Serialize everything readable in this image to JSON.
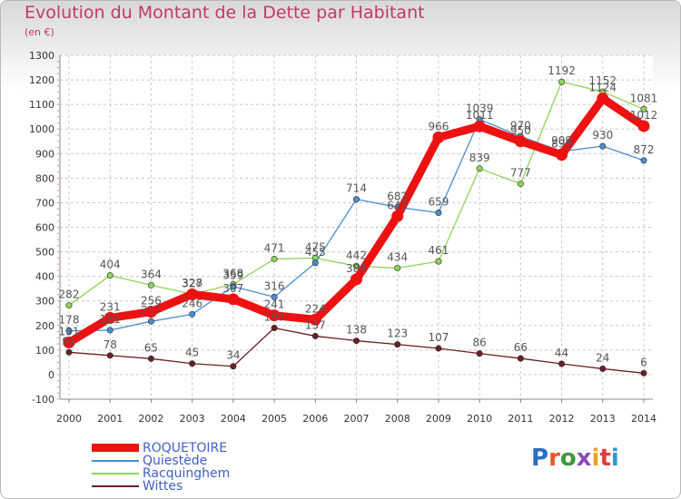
{
  "header": {
    "title": "Evolution du Montant de la Dette par Habitant",
    "subtitle": "(en €)"
  },
  "logo": {
    "text": "Proxiti",
    "letter_colors": [
      "#2a6ec4",
      "#e8562a",
      "#3a9a3a",
      "#8e4cb4",
      "#f0a020",
      "#e03a3a",
      "#2a9ad0"
    ]
  },
  "colors": {
    "title": "#c0396a",
    "grid": "#c8c8c8",
    "axis_tick_marks": "#d98aa0"
  },
  "chart_data": {
    "type": "line",
    "title": "Evolution du Montant de la Dette par Habitant",
    "subtitle": "(en €)",
    "x": [
      "2000",
      "2001",
      "2002",
      "2003",
      "2004",
      "2005",
      "2006",
      "2007",
      "2008",
      "2009",
      "2010",
      "2011",
      "2012",
      "2013",
      "2014"
    ],
    "ylim": [
      -100,
      1300
    ],
    "yticks": [
      -100,
      0,
      100,
      200,
      300,
      400,
      500,
      600,
      700,
      800,
      900,
      1000,
      1100,
      1200,
      1300
    ],
    "grid": true,
    "legend_position": "bottom-left",
    "series": [
      {
        "name": "Racquinghem",
        "color": "#8fd45a",
        "values": [
          282,
          404,
          364,
          328,
          368,
          471,
          475,
          442,
          434,
          461,
          839,
          777,
          1192,
          1152,
          1081
        ]
      },
      {
        "name": "Quiestède",
        "color": "#4a8fcf",
        "values": [
          178,
          181,
          217,
          246,
          359,
          316,
          455,
          714,
          682,
          659,
          1039,
          970,
          909,
          930,
          872
        ]
      },
      {
        "name": "Wittes",
        "color": "#6b1f24",
        "values": [
          91,
          78,
          65,
          45,
          34,
          190,
          157,
          138,
          123,
          107,
          86,
          66,
          44,
          24,
          6
        ]
      },
      {
        "name": "ROQUETOIRE",
        "color": "#ee1111",
        "values": [
          131,
          231,
          256,
          327,
          307,
          241,
          224,
          388,
          645,
          966,
          1011,
          950,
          895,
          1124,
          1012
        ]
      }
    ],
    "legend": [
      "ROQUETOIRE",
      "Quiestède",
      "Racquinghem",
      "Wittes"
    ]
  }
}
